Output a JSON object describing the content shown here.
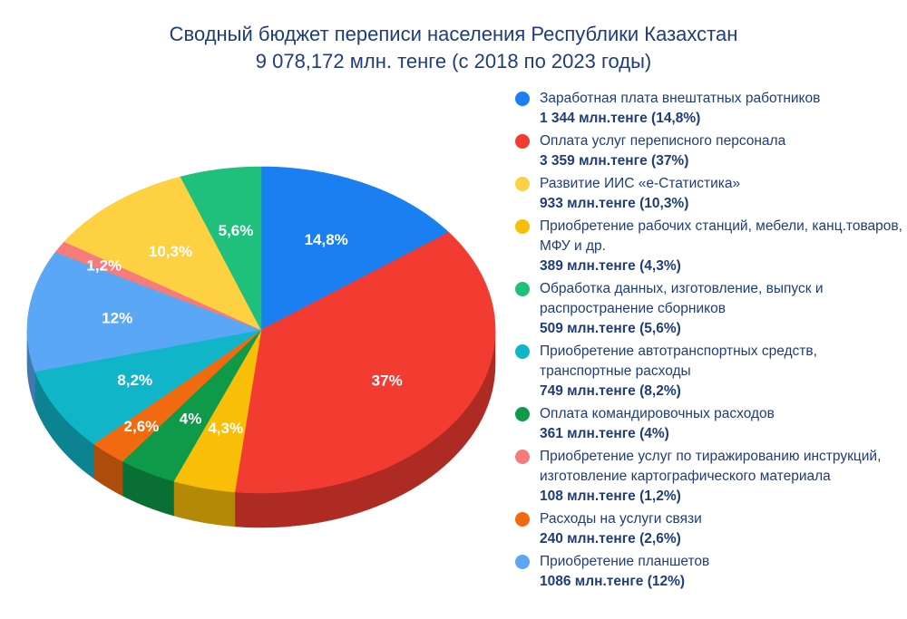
{
  "chart_data": {
    "type": "pie",
    "title_line1": "Сводный бюджет переписи населения Республики Казахстан",
    "title_line2": "9 078,172 млн. тенге (с 2018 по 2023 годы)",
    "slices": [
      {
        "label": "Заработная плата внештатных работников",
        "value_text": "1 344 млн.тенге (14,8%)",
        "percent": 14.8,
        "pct_label": "14,8%",
        "color": "#1a7ff0"
      },
      {
        "label": "Оплата услуг переписного персонала",
        "value_text": "3 359 млн.тенге (37%)",
        "percent": 37,
        "pct_label": "37%",
        "color": "#f23c32"
      },
      {
        "label": "Приобретение рабочих станций, мебели, канц.товаров, МФУ и др.",
        "value_text": "389 млн.тенге (4,3%)",
        "percent": 4.3,
        "pct_label": "4,3%",
        "color": "#f9be08"
      },
      {
        "label": "Оплата командировочных расходов",
        "value_text": "361 млн.тенге (4%)",
        "percent": 4,
        "pct_label": "4%",
        "color": "#0e9a49"
      },
      {
        "label": "Расходы на услуги связи",
        "value_text": "240 млн.тенге (2,6%)",
        "percent": 2.6,
        "pct_label": "2,6%",
        "color": "#f26a10"
      },
      {
        "label": "Приобретение автотранспортных средств, транспортные расходы",
        "value_text": "749 млн.тенге (8,2%)",
        "percent": 8.2,
        "pct_label": "8,2%",
        "color": "#10b6c8"
      },
      {
        "label": "Приобретение планшетов",
        "value_text": "1086 млн.тенге (12%)",
        "percent": 12,
        "pct_label": "12%",
        "color": "#5aa7f5"
      },
      {
        "label": "Приобретение услуг по тиражированию инструкций, изготовление картографического материала",
        "value_text": "108 млн.тенге (1,2%)",
        "percent": 1.2,
        "pct_label": "1,2%",
        "color": "#f67c7c"
      },
      {
        "label": "Развитие ИИС «е-Статистика»",
        "value_text": "933 млн.тенге (10,3%)",
        "percent": 10.3,
        "pct_label": "10,3%",
        "color": "#fdd142"
      },
      {
        "label": "Обработка данных, изготовление, выпуск и распространение сборников",
        "value_text": "509 млн.тенге (5,6%)",
        "percent": 5.6,
        "pct_label": "5,6%",
        "color": "#1fc07c"
      }
    ],
    "legend_order": [
      0,
      1,
      8,
      2,
      9,
      5,
      3,
      7,
      4,
      6
    ],
    "legend_position": "right"
  }
}
